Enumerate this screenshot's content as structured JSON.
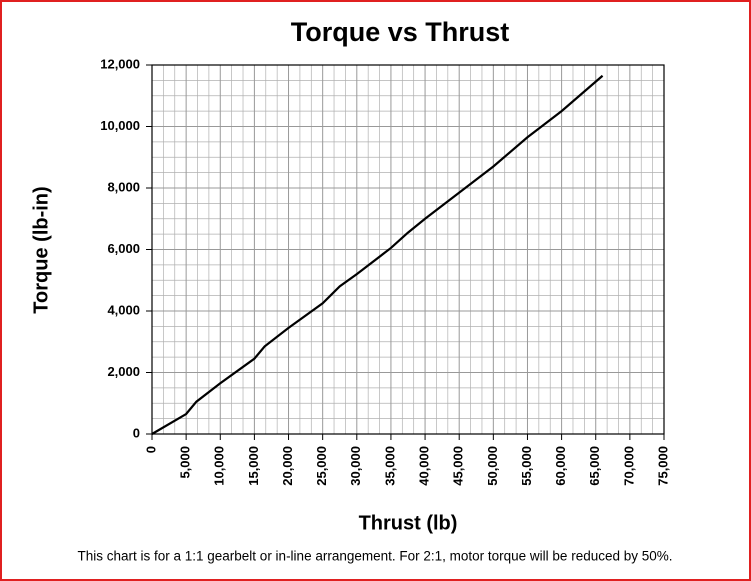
{
  "chart_data": {
    "type": "line",
    "title": "Torque vs Thrust",
    "xlabel": "Thrust (lb)",
    "ylabel": "Torque (lb-in)",
    "note": "This chart is for a 1:1 gearbelt or in-line arrangement.  For 2:1, motor torque will be reduced by 50%.",
    "x": [
      0,
      5000,
      6500,
      10000,
      15000,
      16500,
      20000,
      25000,
      27500,
      30000,
      35000,
      37500,
      40000,
      45000,
      50000,
      55000,
      60000,
      66000
    ],
    "series": [
      {
        "name": "Torque",
        "color": "#000000",
        "values": [
          0,
          650,
          1050,
          1650,
          2450,
          2850,
          3450,
          4250,
          4800,
          5200,
          6050,
          6550,
          7000,
          7850,
          8700,
          9650,
          10500,
          11650
        ]
      }
    ],
    "xlim": [
      0,
      75000
    ],
    "xticks": [
      0,
      {
        "value": 5000,
        "label": "5,000"
      },
      {
        "value": 10000,
        "label": "10,000"
      },
      {
        "value": 15000,
        "label": "15,000"
      },
      {
        "value": 20000,
        "label": "20,000"
      },
      {
        "value": 25000,
        "label": "25,000"
      },
      {
        "value": 30000,
        "label": "30,000"
      },
      {
        "value": 35000,
        "label": "35,000"
      },
      {
        "value": 40000,
        "label": "40,000"
      },
      {
        "value": 45000,
        "label": "45,000"
      },
      {
        "value": 50000,
        "label": "50,000"
      },
      {
        "value": 55000,
        "label": "55,000"
      },
      {
        "value": 60000,
        "label": "60,000"
      },
      {
        "value": 65000,
        "label": "65,000"
      },
      {
        "value": 70000,
        "label": "70,000"
      },
      {
        "value": 75000,
        "label": "75,000"
      }
    ],
    "ylim": [
      0,
      12000
    ],
    "yticks": [
      0,
      {
        "value": 2000,
        "label": "2,000"
      },
      {
        "value": 4000,
        "label": "4,000"
      },
      {
        "value": 6000,
        "label": "6,000"
      },
      {
        "value": 8000,
        "label": "8,000"
      },
      {
        "value": 10000,
        "label": "10,000"
      },
      {
        "value": 12000,
        "label": "12,000"
      }
    ],
    "grid": true
  }
}
